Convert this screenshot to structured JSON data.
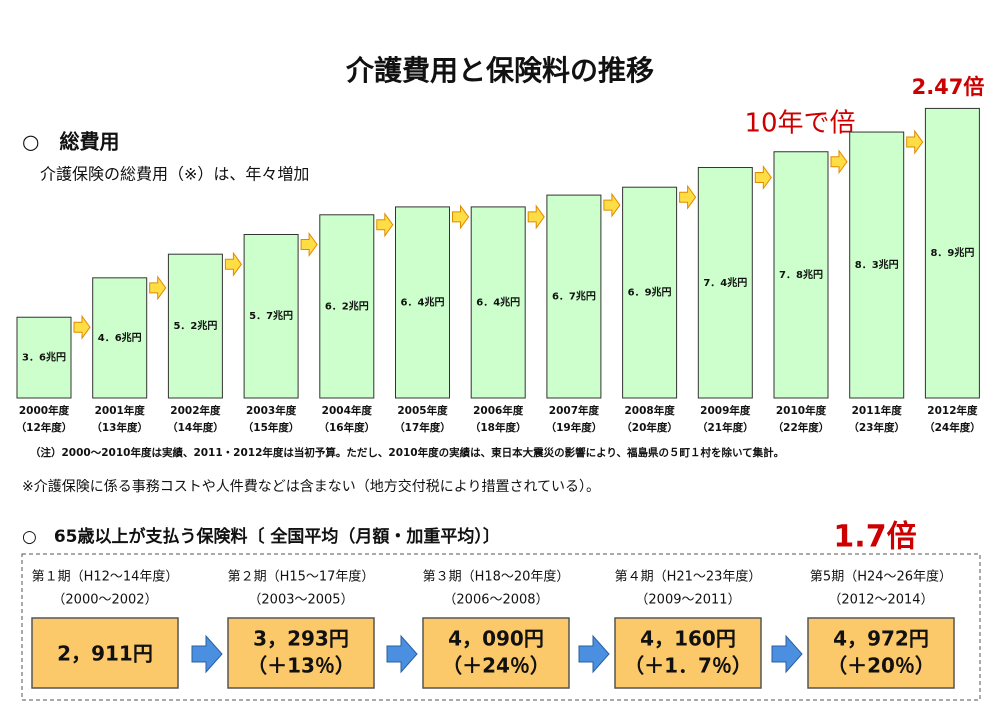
{
  "chart_data": {
    "type": "bar",
    "title": "介護費用と保険料の推移",
    "section": "○　総費用",
    "subtitle": "介護保険の総費用（※）は、年々増加",
    "categories": [
      "2000年度",
      "2001年度",
      "2002年度",
      "2003年度",
      "2004年度",
      "2005年度",
      "2006年度",
      "2007年度",
      "2008年度",
      "2009年度",
      "2010年度",
      "2011年度",
      "2012年度"
    ],
    "category_sublabels": [
      "（12年度）",
      "（13年度）",
      "（14年度）",
      "（15年度）",
      "（16年度）",
      "（17年度）",
      "（18年度）",
      "（19年度）",
      "（20年度）",
      "（21年度）",
      "（22年度）",
      "（23年度）",
      "（24年度）"
    ],
    "values": [
      3.6,
      4.6,
      5.2,
      5.7,
      6.2,
      6.4,
      6.4,
      6.7,
      6.9,
      7.4,
      7.8,
      8.3,
      8.9
    ],
    "value_labels": [
      "3．6兆円",
      "4．6兆円",
      "5．2兆円",
      "5．7兆円",
      "6．2兆円",
      "6．4兆円",
      "6．4兆円",
      "6．7兆円",
      "6．9兆円",
      "7．4兆円",
      "7．8兆円",
      "8．3兆円",
      "8．9兆円"
    ],
    "color": "#ccffcc",
    "annotations": [
      "10年で倍",
      "2.47倍"
    ],
    "notes": [
      "（注）2000～2010年度は実績、2011・2012年度は当初予算。ただし、2010年度の実績は、東日本大震災の影響により、福島県の５町１村を除いて集計。",
      "※介護保険に係る事務コストや人件費などは含まない（地方交付税により措置されている）。"
    ]
  },
  "premium": {
    "section": "○　65歳以上が支払う保険料〔 全国平均（月額・加重平均）〕",
    "annotation": "1.7倍",
    "periods": [
      {
        "period": "第１期（H12～14年度）",
        "years": "（2000～2002）",
        "amount": "2，911円"
      },
      {
        "period": "第２期（H15～17年度）",
        "years": "（2003～2005）",
        "amount": "3，293円",
        "change": "（＋13％）"
      },
      {
        "period": "第３期（H18～20年度）",
        "years": "（2006～2008）",
        "amount": "4，090円",
        "change": "（＋24％）"
      },
      {
        "period": "第４期（H21～23年度）",
        "years": "（2009～2011）",
        "amount": "4，160円",
        "change": "（＋1．7％）"
      },
      {
        "period": "第5期（H24～26年度）",
        "years": "（2012～2014）",
        "amount": "4，972円",
        "change": "（＋20％）"
      }
    ]
  }
}
